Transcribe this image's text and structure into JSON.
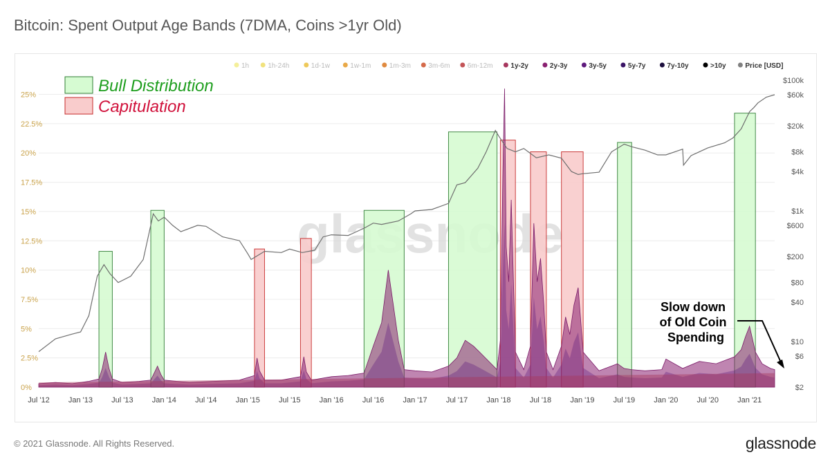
{
  "title": "Bitcoin: Spent Output Age Bands (7DMA, Coins >1yr Old)",
  "watermark": "glassnode",
  "footer": {
    "copyright": "© 2021 Glassnode. All Rights Reserved.",
    "logo": "glassnode"
  },
  "annotations": {
    "bull": {
      "label": "Bull Distribution",
      "fill": "#d6fbd2",
      "stroke": "#2e7d32",
      "text_color": "#1e9e1e"
    },
    "cap": {
      "label": "Capitulation",
      "fill": "#f9cccc",
      "stroke": "#c62828",
      "text_color": "#d0103a"
    },
    "note_lines": [
      "Slow down",
      "of Old Coin",
      "Spending"
    ]
  },
  "chart_data": {
    "type": "area",
    "x_tick_labels": [
      "Jul '12",
      "Jan '13",
      "Jul '13",
      "Jan '14",
      "Jul '14",
      "Jan '15",
      "Jul '15",
      "Jan '16",
      "Jul '16",
      "Jan '17",
      "Jul '17",
      "Jan '18",
      "Jul '18",
      "Jan '19",
      "Jul '19",
      "Jan '20",
      "Jul '20",
      "Jan '21"
    ],
    "x_range": [
      2012.5,
      2021.3
    ],
    "y_left": {
      "label": "",
      "ticks": [
        "0%",
        "2.5%",
        "5%",
        "7.5%",
        "10%",
        "12.5%",
        "15%",
        "17.5%",
        "20%",
        "22.5%",
        "25%"
      ],
      "range": [
        0,
        25.8
      ]
    },
    "y_right": {
      "label": "Price [USD]",
      "scale": "log",
      "ticks": [
        "$2",
        "$6",
        "$10",
        "$40",
        "$80",
        "$200",
        "$600",
        "$1k",
        "$4k",
        "$8k",
        "$20k",
        "$60k",
        "$100k"
      ],
      "range": [
        2,
        100000
      ]
    },
    "legend": [
      {
        "name": "1h",
        "color": "#f4ef9a",
        "active": false
      },
      {
        "name": "1h-24h",
        "color": "#f1e27d",
        "active": false
      },
      {
        "name": "1d-1w",
        "color": "#eec95a",
        "active": false
      },
      {
        "name": "1w-1m",
        "color": "#e9a948",
        "active": false
      },
      {
        "name": "1m-3m",
        "color": "#e08a3f",
        "active": false
      },
      {
        "name": "3m-6m",
        "color": "#d56a4a",
        "active": false
      },
      {
        "name": "6m-12m",
        "color": "#c35457",
        "active": false
      },
      {
        "name": "1y-2y",
        "color": "#a7375e",
        "active": true
      },
      {
        "name": "2y-3y",
        "color": "#8a2171",
        "active": true
      },
      {
        "name": "3y-5y",
        "color": "#5e1a7d",
        "active": true
      },
      {
        "name": "5y-7y",
        "color": "#3a1466",
        "active": true
      },
      {
        "name": "7y-10y",
        "color": "#1c0e3d",
        "active": true
      },
      {
        "name": ">10y",
        "color": "#000000",
        "active": true
      },
      {
        "name": "Price [USD]",
        "color": "#808080",
        "active": true
      }
    ],
    "legend_position": "top",
    "grid": true,
    "zones": [
      {
        "kind": "bull",
        "x0": 2013.22,
        "x1": 2013.38,
        "top_pct": 11.6
      },
      {
        "kind": "bull",
        "x0": 2013.84,
        "x1": 2014.0,
        "top_pct": 15.1
      },
      {
        "kind": "cap",
        "x0": 2015.08,
        "x1": 2015.2,
        "top_pct": 11.8
      },
      {
        "kind": "cap",
        "x0": 2015.63,
        "x1": 2015.76,
        "top_pct": 12.7
      },
      {
        "kind": "bull",
        "x0": 2016.39,
        "x1": 2016.87,
        "top_pct": 15.1
      },
      {
        "kind": "bull",
        "x0": 2017.4,
        "x1": 2017.98,
        "top_pct": 21.8
      },
      {
        "kind": "cap",
        "x0": 2018.02,
        "x1": 2018.2,
        "top_pct": 21.1
      },
      {
        "kind": "cap",
        "x0": 2018.38,
        "x1": 2018.57,
        "top_pct": 20.1
      },
      {
        "kind": "cap",
        "x0": 2018.75,
        "x1": 2019.01,
        "top_pct": 20.1
      },
      {
        "kind": "bull",
        "x0": 2019.42,
        "x1": 2019.59,
        "top_pct": 20.9
      },
      {
        "kind": "bull",
        "x0": 2020.82,
        "x1": 2021.07,
        "top_pct": 23.4
      }
    ],
    "spend_series": {
      "name": "Spent output share, coins >1yr old (%)",
      "x": [
        2012.5,
        2012.7,
        2012.9,
        2013.1,
        2013.22,
        2013.26,
        2013.3,
        2013.34,
        2013.38,
        2013.5,
        2013.7,
        2013.84,
        2013.88,
        2013.92,
        2013.96,
        2014.0,
        2014.3,
        2014.6,
        2014.9,
        2015.08,
        2015.11,
        2015.14,
        2015.2,
        2015.4,
        2015.63,
        2015.67,
        2015.7,
        2015.76,
        2016.0,
        2016.2,
        2016.39,
        2016.5,
        2016.6,
        2016.68,
        2016.74,
        2016.8,
        2016.87,
        2017.0,
        2017.2,
        2017.4,
        2017.5,
        2017.6,
        2017.7,
        2017.8,
        2017.98,
        2018.02,
        2018.05,
        2018.07,
        2018.09,
        2018.12,
        2018.15,
        2018.18,
        2018.2,
        2018.3,
        2018.38,
        2018.42,
        2018.46,
        2018.5,
        2018.54,
        2018.57,
        2018.65,
        2018.75,
        2018.8,
        2018.85,
        2018.9,
        2018.95,
        2019.01,
        2019.2,
        2019.42,
        2019.5,
        2019.59,
        2019.75,
        2019.95,
        2020.0,
        2020.2,
        2020.4,
        2020.6,
        2020.82,
        2020.9,
        2020.95,
        2021.0,
        2021.07,
        2021.15,
        2021.2,
        2021.25,
        2021.3
      ],
      "y": [
        0.3,
        0.4,
        0.3,
        0.5,
        0.7,
        1.6,
        3.0,
        1.6,
        0.7,
        0.4,
        0.5,
        0.6,
        1.2,
        1.8,
        1.1,
        0.6,
        0.4,
        0.5,
        0.6,
        1.0,
        2.5,
        1.4,
        0.6,
        0.6,
        0.9,
        2.6,
        1.3,
        0.6,
        0.9,
        1.0,
        1.2,
        3.5,
        5.5,
        10.0,
        7.0,
        4.0,
        1.5,
        1.4,
        1.3,
        1.8,
        2.5,
        4.0,
        3.5,
        2.8,
        1.5,
        4.0,
        18.0,
        25.5,
        12.0,
        9.0,
        16.0,
        8.0,
        3.0,
        1.5,
        3.5,
        14.0,
        9.0,
        11.0,
        7.0,
        3.0,
        1.5,
        3.5,
        6.0,
        4.5,
        7.0,
        8.5,
        3.0,
        1.4,
        2.0,
        1.6,
        1.5,
        1.4,
        1.5,
        2.4,
        1.6,
        2.2,
        2.0,
        2.6,
        3.2,
        4.3,
        5.2,
        3.0,
        2.0,
        1.8,
        1.6,
        1.5
      ]
    },
    "price_series": {
      "name": "Price [USD]",
      "x": [
        2012.5,
        2012.7,
        2012.9,
        2013.0,
        2013.1,
        2013.2,
        2013.28,
        2013.35,
        2013.45,
        2013.6,
        2013.75,
        2013.87,
        2013.93,
        2014.0,
        2014.1,
        2014.2,
        2014.4,
        2014.5,
        2014.7,
        2014.9,
        2015.0,
        2015.04,
        2015.2,
        2015.4,
        2015.5,
        2015.65,
        2015.8,
        2015.9,
        2016.0,
        2016.2,
        2016.4,
        2016.5,
        2016.6,
        2016.8,
        2016.95,
        2017.0,
        2017.2,
        2017.4,
        2017.5,
        2017.6,
        2017.75,
        2017.85,
        2017.96,
        2018.0,
        2018.1,
        2018.2,
        2018.3,
        2018.45,
        2018.6,
        2018.75,
        2018.87,
        2018.95,
        2019.0,
        2019.2,
        2019.35,
        2019.5,
        2019.6,
        2019.75,
        2019.9,
        2020.0,
        2020.2,
        2020.21,
        2020.3,
        2020.5,
        2020.7,
        2020.8,
        2020.9,
        2021.0,
        2021.05,
        2021.1,
        2021.2,
        2021.3
      ],
      "y": [
        7,
        11,
        13,
        14,
        25,
        100,
        150,
        110,
        80,
        100,
        180,
        900,
        700,
        800,
        600,
        480,
        600,
        580,
        400,
        350,
        220,
        180,
        240,
        230,
        260,
        230,
        250,
        400,
        430,
        420,
        550,
        650,
        620,
        700,
        900,
        1000,
        1050,
        1300,
        2500,
        2700,
        4500,
        8000,
        17000,
        14000,
        9000,
        8000,
        9000,
        6500,
        7200,
        6400,
        4000,
        3600,
        3700,
        3900,
        8000,
        10500,
        9500,
        8500,
        7200,
        7200,
        8800,
        5000,
        7000,
        9200,
        11000,
        13000,
        18000,
        33000,
        38000,
        45000,
        55000,
        60000
      ]
    }
  }
}
